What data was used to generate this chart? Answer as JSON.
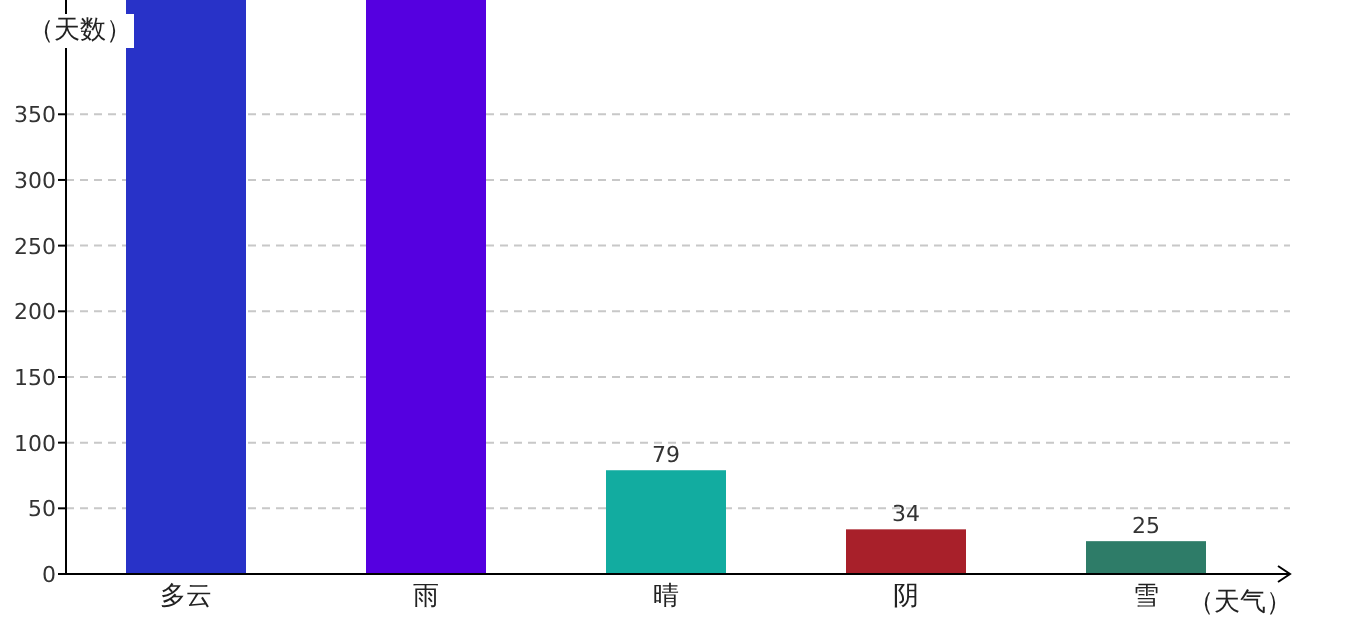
{
  "chart_data": {
    "type": "bar",
    "ylabel": "（天数）",
    "xlabel": "（天气）",
    "categories": [
      "多云",
      "雨",
      "晴",
      "阴",
      "雪"
    ],
    "values": [
      437,
      437,
      79,
      34,
      25
    ],
    "colors": [
      "#2832c8",
      "#5500e0",
      "#12aca0",
      "#a8202a",
      "#2e7c68"
    ],
    "value_labels": [
      null,
      null,
      "79",
      "34",
      "25"
    ],
    "ylim": [
      0,
      437
    ],
    "yticks": [
      0,
      50,
      100,
      150,
      200,
      250,
      300,
      350
    ],
    "grid": "y"
  }
}
